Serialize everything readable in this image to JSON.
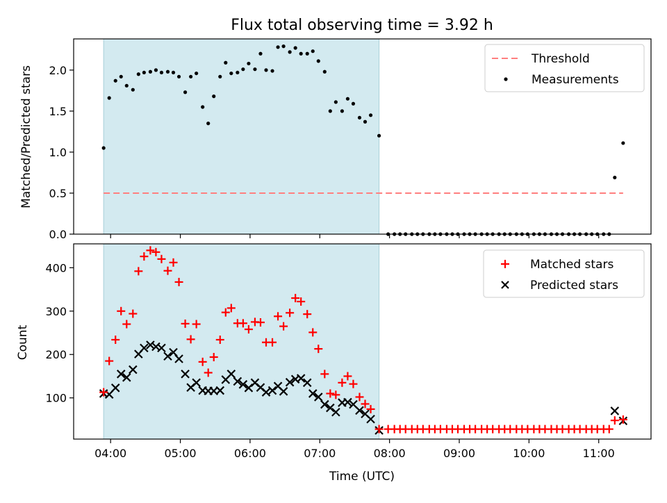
{
  "title": "Flux total observing time = 3.92 h",
  "x_axis": {
    "label": "Time (UTC)",
    "ticks": [
      "04:00",
      "05:00",
      "06:00",
      "07:00",
      "08:00",
      "09:00",
      "10:00",
      "11:00"
    ]
  },
  "shaded_region": {
    "start_hours": 3.9,
    "end_hours": 7.85,
    "color": "#d3eaf0"
  },
  "chart_data": [
    {
      "type": "scatter",
      "panel": "top",
      "ylabel": "Matched/Predicted stars",
      "xlim_hours": [
        3.47,
        11.75
      ],
      "ylim": [
        0,
        2.38
      ],
      "yticks": [
        0.0,
        0.5,
        1.0,
        1.5,
        2.0
      ],
      "ytick_labels": [
        "0.0",
        "0.5",
        "1.0",
        "1.5",
        "2.0"
      ],
      "legend_position": "top-right",
      "threshold": {
        "name": "Threshold",
        "value": 0.5,
        "x_start_hours": 3.9,
        "x_end_hours": 11.35,
        "color": "#ff7f7f",
        "style": "dashed"
      },
      "series": [
        {
          "name": "Measurements",
          "color": "#000000",
          "marker": "dot",
          "x_hours": [
            3.9,
            3.98,
            4.07,
            4.15,
            4.23,
            4.32,
            4.4,
            4.48,
            4.57,
            4.65,
            4.73,
            4.82,
            4.9,
            4.98,
            5.07,
            5.15,
            5.23,
            5.32,
            5.4,
            5.48,
            5.57,
            5.65,
            5.73,
            5.82,
            5.9,
            5.98,
            6.07,
            6.15,
            6.23,
            6.32,
            6.4,
            6.48,
            6.57,
            6.65,
            6.73,
            6.82,
            6.9,
            6.98,
            7.07,
            7.15,
            7.23,
            7.32,
            7.4,
            7.48,
            7.57,
            7.65,
            7.73,
            7.85,
            7.98,
            8.07,
            8.15,
            8.23,
            8.32,
            8.4,
            8.48,
            8.57,
            8.65,
            8.73,
            8.82,
            8.9,
            8.98,
            9.07,
            9.15,
            9.23,
            9.32,
            9.4,
            9.48,
            9.57,
            9.65,
            9.73,
            9.82,
            9.9,
            9.98,
            10.07,
            10.15,
            10.23,
            10.32,
            10.4,
            10.48,
            10.57,
            10.65,
            10.73,
            10.82,
            10.9,
            10.98,
            11.07,
            11.15,
            11.23,
            11.35
          ],
          "y": [
            1.05,
            1.66,
            1.87,
            1.92,
            1.81,
            1.76,
            1.95,
            1.97,
            1.98,
            2.0,
            1.97,
            1.98,
            1.97,
            1.92,
            1.73,
            1.92,
            1.96,
            1.55,
            1.35,
            1.68,
            1.92,
            2.09,
            1.96,
            1.97,
            2.01,
            2.08,
            2.01,
            2.2,
            2.0,
            1.99,
            2.28,
            2.29,
            2.22,
            2.27,
            2.2,
            2.2,
            2.23,
            2.11,
            1.98,
            1.5,
            1.61,
            1.5,
            1.65,
            1.59,
            1.42,
            1.37,
            1.45,
            1.2,
            0,
            0,
            0,
            0,
            0,
            0,
            0,
            0,
            0,
            0,
            0,
            0,
            0,
            0,
            0,
            0,
            0,
            0,
            0,
            0,
            0,
            0,
            0,
            0,
            0,
            0,
            0,
            0,
            0,
            0,
            0,
            0,
            0,
            0,
            0,
            0,
            0,
            0,
            0,
            0.69,
            1.11
          ]
        }
      ]
    },
    {
      "type": "scatter",
      "panel": "bottom",
      "ylabel": "Count",
      "xlim_hours": [
        3.47,
        11.75
      ],
      "ylim": [
        5,
        455
      ],
      "yticks": [
        100,
        200,
        300,
        400
      ],
      "ytick_labels": [
        "100",
        "200",
        "300",
        "400"
      ],
      "legend_position": "top-right",
      "series": [
        {
          "name": "Matched stars",
          "color": "#ff0000",
          "marker": "plus",
          "x_hours": [
            3.9,
            3.98,
            4.07,
            4.15,
            4.23,
            4.32,
            4.4,
            4.48,
            4.57,
            4.65,
            4.73,
            4.82,
            4.9,
            4.98,
            5.07,
            5.15,
            5.23,
            5.32,
            5.4,
            5.48,
            5.57,
            5.65,
            5.73,
            5.82,
            5.9,
            5.98,
            6.07,
            6.15,
            6.23,
            6.32,
            6.4,
            6.48,
            6.57,
            6.65,
            6.73,
            6.82,
            6.9,
            6.98,
            7.07,
            7.15,
            7.23,
            7.32,
            7.4,
            7.48,
            7.57,
            7.65,
            7.73,
            7.85,
            7.98,
            8.07,
            8.15,
            8.23,
            8.32,
            8.4,
            8.48,
            8.57,
            8.65,
            8.73,
            8.82,
            8.9,
            8.98,
            9.07,
            9.15,
            9.23,
            9.32,
            9.4,
            9.48,
            9.57,
            9.65,
            9.73,
            9.82,
            9.9,
            9.98,
            10.07,
            10.15,
            10.23,
            10.32,
            10.4,
            10.48,
            10.57,
            10.65,
            10.73,
            10.82,
            10.9,
            10.98,
            11.07,
            11.15,
            11.23,
            11.35
          ],
          "y": [
            113,
            185,
            234,
            300,
            270,
            294,
            392,
            426,
            440,
            436,
            420,
            393,
            412,
            367,
            271,
            235,
            270,
            183,
            158,
            194,
            234,
            297,
            307,
            272,
            272,
            258,
            275,
            274,
            228,
            228,
            288,
            265,
            296,
            330,
            322,
            293,
            251,
            213,
            155,
            110,
            107,
            135,
            150,
            132,
            102,
            86,
            74,
            28,
            28,
            28,
            28,
            28,
            28,
            28,
            28,
            28,
            28,
            28,
            28,
            28,
            28,
            28,
            28,
            28,
            28,
            28,
            28,
            28,
            28,
            28,
            28,
            28,
            28,
            28,
            28,
            28,
            28,
            28,
            28,
            28,
            28,
            28,
            28,
            28,
            28,
            28,
            28,
            48,
            50
          ]
        },
        {
          "name": "Predicted stars",
          "color": "#000000",
          "marker": "x",
          "x_hours": [
            3.9,
            3.98,
            4.07,
            4.15,
            4.23,
            4.32,
            4.4,
            4.48,
            4.57,
            4.65,
            4.73,
            4.82,
            4.9,
            4.98,
            5.07,
            5.15,
            5.23,
            5.32,
            5.4,
            5.48,
            5.57,
            5.65,
            5.73,
            5.82,
            5.9,
            5.98,
            6.07,
            6.15,
            6.23,
            6.32,
            6.4,
            6.48,
            6.57,
            6.65,
            6.73,
            6.82,
            6.9,
            6.98,
            7.07,
            7.15,
            7.23,
            7.32,
            7.4,
            7.48,
            7.57,
            7.65,
            7.73,
            7.85,
            11.23,
            11.35
          ],
          "y": [
            110,
            108,
            123,
            155,
            147,
            165,
            201,
            215,
            222,
            218,
            215,
            196,
            205,
            190,
            155,
            124,
            135,
            117,
            116,
            116,
            117,
            142,
            155,
            138,
            131,
            123,
            135,
            124,
            113,
            117,
            127,
            115,
            136,
            143,
            145,
            135,
            110,
            102,
            85,
            77,
            67,
            89,
            90,
            85,
            71,
            63,
            51,
            25,
            70,
            47
          ]
        }
      ]
    }
  ]
}
